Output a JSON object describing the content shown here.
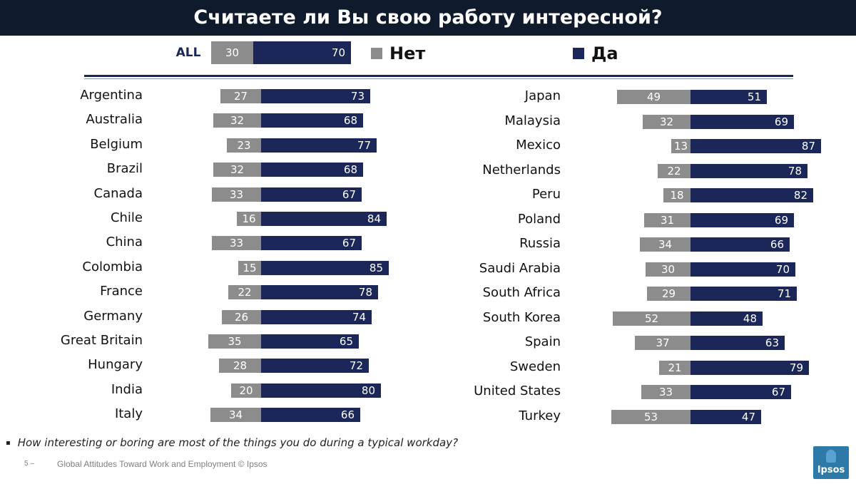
{
  "title": "Считаете ли Вы свою работу интересной?",
  "legend": {
    "no_label": "Нет",
    "yes_label": "Да",
    "no_color": "#8c8c8c",
    "yes_color": "#1c2759"
  },
  "all_row": {
    "label": "ALL",
    "no": 30,
    "yes": 70
  },
  "chart_data": {
    "type": "bar",
    "orientation": "horizontal",
    "stacked": true,
    "title": "Считаете ли Вы свою работу интересной?",
    "legend_position": "top",
    "overall": {
      "category": "ALL",
      "values": {
        "Нет": 30,
        "Да": 70
      }
    },
    "categories": [
      "Argentina",
      "Australia",
      "Belgium",
      "Brazil",
      "Canada",
      "Chile",
      "China",
      "Colombia",
      "France",
      "Germany",
      "Great Britain",
      "Hungary",
      "India",
      "Italy",
      "Japan",
      "Malaysia",
      "Mexico",
      "Netherlands",
      "Peru",
      "Poland",
      "Russia",
      "Saudi Arabia",
      "South Africa",
      "South Korea",
      "Spain",
      "Sweden",
      "United States",
      "Turkey"
    ],
    "series": [
      {
        "name": "Нет",
        "color": "#8c8c8c",
        "values": [
          27,
          32,
          23,
          32,
          33,
          16,
          33,
          15,
          22,
          26,
          35,
          28,
          20,
          34,
          49,
          32,
          13,
          22,
          18,
          31,
          34,
          30,
          29,
          52,
          37,
          21,
          33,
          53
        ]
      },
      {
        "name": "Да",
        "color": "#1c2759",
        "values": [
          73,
          68,
          77,
          68,
          67,
          84,
          67,
          85,
          78,
          74,
          65,
          72,
          80,
          66,
          51,
          69,
          87,
          78,
          82,
          69,
          66,
          70,
          71,
          48,
          63,
          79,
          67,
          47
        ]
      }
    ]
  },
  "footnote": "How interesting or boring are most of the things you do during a typical workday?",
  "footnote_bullet": "▪",
  "page_number": "5 –",
  "source": "Global Attitudes Toward Work and Employment © Ipsos",
  "logo_text": "Ipsos"
}
